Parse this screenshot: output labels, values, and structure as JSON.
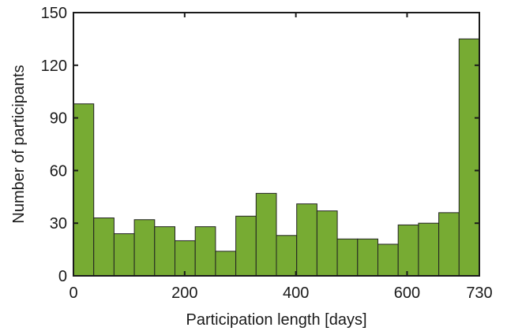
{
  "chart_data": {
    "type": "bar",
    "xlabel": "Participation length [days]",
    "ylabel": "Number of participants",
    "xlim": [
      0,
      730
    ],
    "ylim": [
      0,
      150
    ],
    "x_ticks": [
      0,
      200,
      400,
      600,
      730
    ],
    "y_ticks": [
      0,
      30,
      60,
      90,
      120,
      150
    ],
    "bin_width": 36.5,
    "bin_starts": [
      0,
      36.5,
      73,
      109.5,
      146,
      182.5,
      219,
      255.5,
      292,
      328.5,
      365,
      401.5,
      438,
      474.5,
      511,
      547.5,
      584,
      620.5,
      657,
      693.5
    ],
    "values": [
      98,
      33,
      24,
      32,
      28,
      20,
      28,
      14,
      34,
      47,
      23,
      41,
      37,
      21,
      21,
      18,
      29,
      30,
      36,
      135
    ],
    "grid": false,
    "bar_color": "#77ab33",
    "edge_color": "#222222"
  }
}
